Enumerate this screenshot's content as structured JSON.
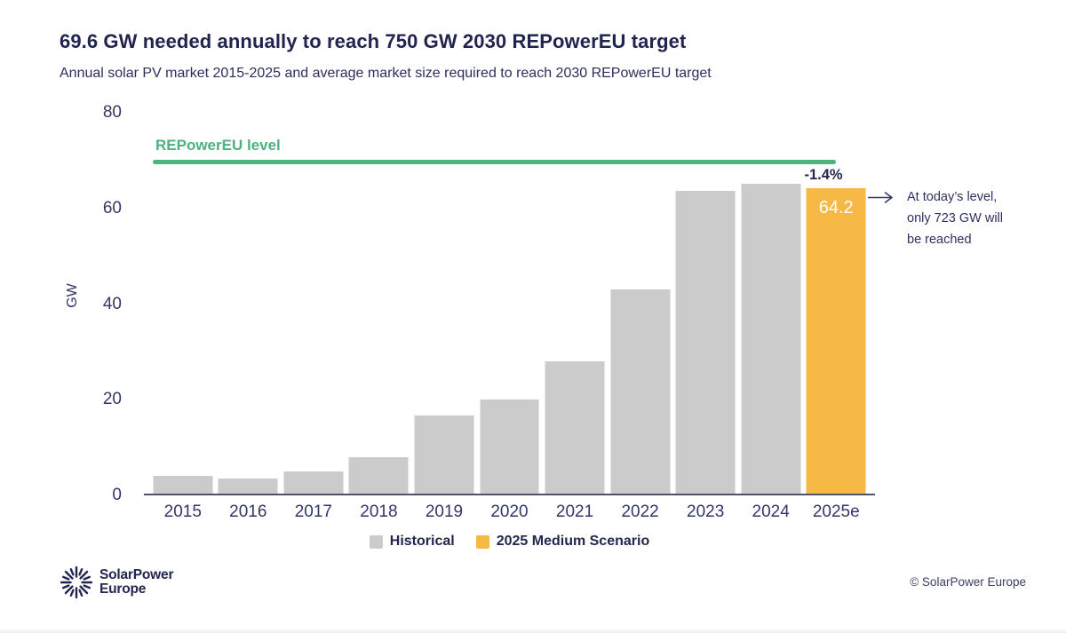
{
  "header": {
    "title": "69.6 GW needed annually to reach 750 GW 2030 REPowerEU target",
    "subtitle": "Annual solar PV market 2015-2025 and average market size required to reach 2030 REPowerEU target"
  },
  "chart_data": {
    "type": "bar",
    "title": "69.6 GW needed annually to reach 750 GW 2030 REPowerEU target",
    "subtitle": "Annual solar PV market 2015-2025 and average market size required to reach 2030 REPowerEU target",
    "ylabel": "GW",
    "ylim": [
      0,
      80
    ],
    "yticks": [
      0,
      20,
      40,
      60,
      80
    ],
    "grid": false,
    "categories": [
      "2015",
      "2016",
      "2017",
      "2018",
      "2019",
      "2020",
      "2021",
      "2022",
      "2023",
      "2024",
      "2025e"
    ],
    "series": [
      {
        "name": "Historical",
        "color": "#cbcbcb",
        "values": [
          4,
          3.5,
          5,
          8,
          16.8,
          20.1,
          28,
          43,
          63.7,
          65.1,
          null
        ]
      },
      {
        "name": "2025 Medium Scenario",
        "color": "#f6b945",
        "values": [
          null,
          null,
          null,
          null,
          null,
          null,
          null,
          null,
          null,
          null,
          64.2
        ]
      }
    ],
    "reference_line": {
      "label": "REPowerEU level",
      "value": 69.6,
      "color": "#4db27d"
    },
    "bar_value_label": {
      "category": "2025e",
      "text": "64.2"
    },
    "delta_label": {
      "category": "2025e",
      "text": "-1.4%"
    },
    "annotation": {
      "lines": [
        "At today’s level,",
        "only 723 GW will",
        "be reached"
      ]
    },
    "legend": {
      "position": "bottom-center",
      "items": [
        {
          "label": "Historical",
          "color": "#cbcbcb"
        },
        {
          "label": "2025 Medium Scenario",
          "color": "#f6b945"
        }
      ]
    },
    "colors": {
      "navy": "#23264f",
      "green": "#4db27d",
      "orange": "#f6b945",
      "gray": "#cbcbcb"
    }
  },
  "footer": {
    "logo_line1": "SolarPower",
    "logo_line2": "Europe",
    "copyright": "© SolarPower Europe"
  }
}
